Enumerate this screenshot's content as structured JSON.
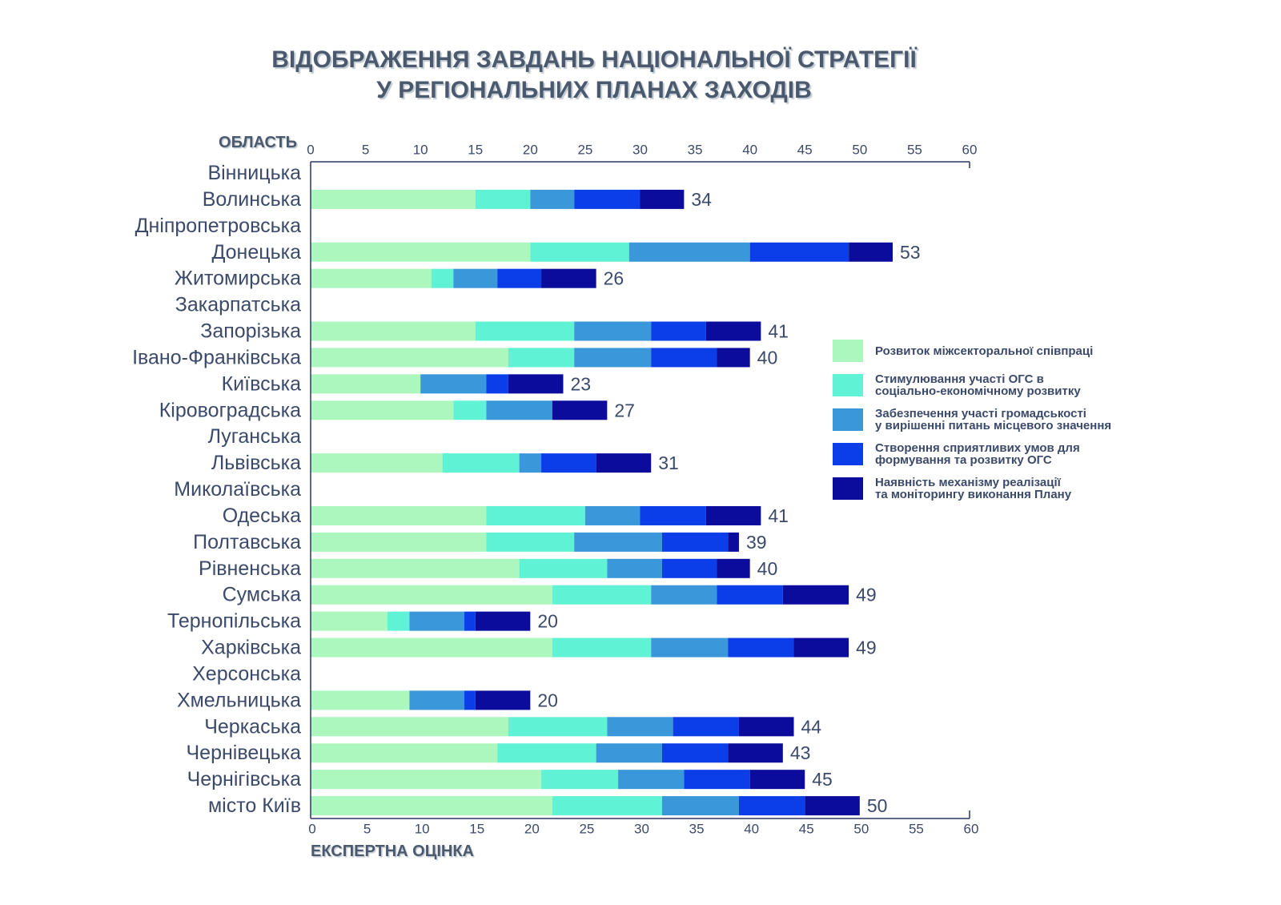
{
  "colors": {
    "text": "#3b4a6b",
    "title": "#4b596e",
    "axis": "#2a3760",
    "background": "#ffffff"
  },
  "chart_data": {
    "type": "bar",
    "orientation": "horizontal",
    "stacked": true,
    "title": [
      "ВІДОБРАЖЕННЯ ЗАВДАНЬ НАЦІОНАЛЬНОЇ СТРАТЕГІЇ",
      "У РЕГІОНАЛЬНИХ ПЛАНАХ ЗАХОДІВ"
    ],
    "ylabel": "ОБЛАСТЬ",
    "xlabel": "ЕКСПЕРТНА ОЦІНКА",
    "xlim": [
      0,
      60
    ],
    "xticks": [
      0,
      5,
      10,
      15,
      20,
      25,
      30,
      35,
      40,
      45,
      50,
      55,
      60
    ],
    "grid": false,
    "legend_position": "right",
    "categories": [
      "Вінницька",
      "Волинська",
      "Дніпропетровська",
      "Донецька",
      "Житомирська",
      "Закарпатська",
      "Запорізька",
      "Івано-Франківська",
      "Київська",
      "Кіровоградська",
      "Луганська",
      "Львівська",
      "Миколаївська",
      "Одеська",
      "Полтавська",
      "Рівненська",
      "Сумська",
      "Тернопільська",
      "Харківська",
      "Херсонська",
      "Хмельницька",
      "Черкаська",
      "Чернівецька",
      "Чернігівська",
      "місто Київ"
    ],
    "series": [
      {
        "name": "Розвиток міжсекторальної співпраці",
        "color": "#abf7bd",
        "values": [
          null,
          15,
          null,
          20,
          11,
          null,
          15,
          18,
          10,
          13,
          null,
          12,
          null,
          16,
          16,
          19,
          22,
          7,
          22,
          null,
          9,
          18,
          17,
          21,
          22
        ]
      },
      {
        "name": "Стимулювання участі ОГС в\nсоціально-економічному розвитку",
        "color": "#5ff2d5",
        "values": [
          null,
          5,
          null,
          9,
          2,
          null,
          9,
          6,
          0,
          3,
          null,
          7,
          null,
          9,
          8,
          8,
          9,
          2,
          9,
          null,
          0,
          9,
          9,
          7,
          10
        ]
      },
      {
        "name": "Забезпечення участі громадськості\nу вирішенні питань місцевого значення",
        "color": "#3a97d9",
        "values": [
          null,
          4,
          null,
          11,
          4,
          null,
          7,
          7,
          6,
          6,
          null,
          2,
          null,
          5,
          8,
          5,
          6,
          5,
          7,
          null,
          5,
          6,
          6,
          6,
          7
        ]
      },
      {
        "name": "Створення сприятливих умов для\nформування та розвитку ОГС",
        "color": "#0b3ee8",
        "values": [
          null,
          6,
          null,
          9,
          4,
          null,
          5,
          6,
          2,
          0,
          null,
          5,
          null,
          6,
          6,
          5,
          6,
          1,
          6,
          null,
          1,
          6,
          6,
          6,
          6
        ]
      },
      {
        "name": "Наявність механізму реалізації\nта моніторингу виконання Плану",
        "color": "#0b0c9b",
        "values": [
          null,
          4,
          null,
          4,
          5,
          null,
          5,
          3,
          5,
          5,
          null,
          5,
          null,
          5,
          1,
          3,
          6,
          5,
          5,
          null,
          5,
          5,
          5,
          5,
          5
        ]
      }
    ],
    "totals": [
      null,
      34,
      null,
      53,
      26,
      null,
      41,
      40,
      23,
      27,
      null,
      31,
      null,
      41,
      39,
      40,
      49,
      20,
      49,
      null,
      20,
      44,
      43,
      45,
      50
    ]
  }
}
